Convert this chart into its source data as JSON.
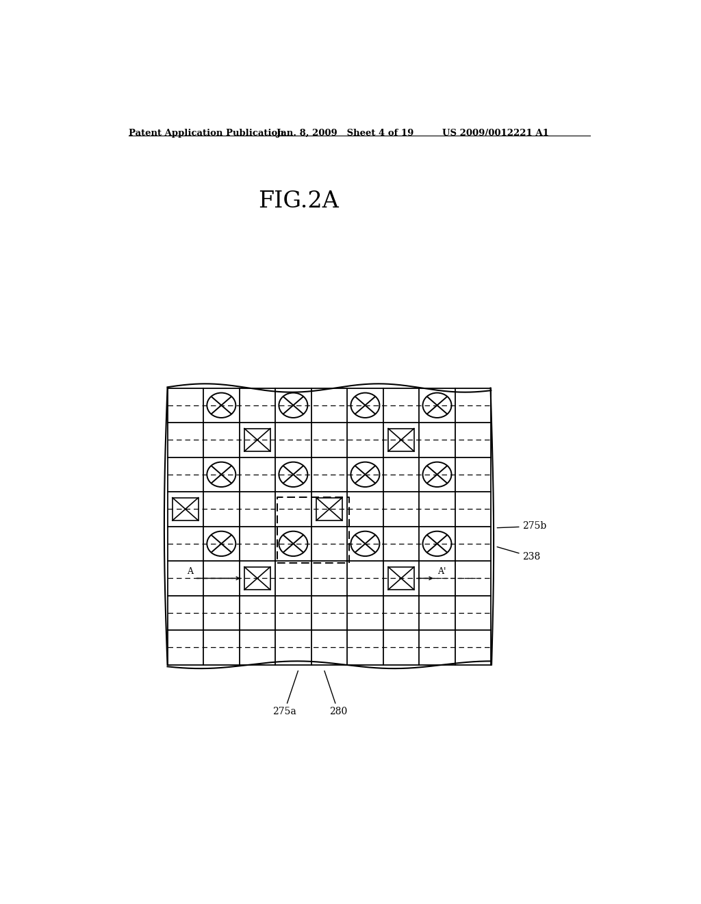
{
  "title": "FIG.2A",
  "header_left": "Patent Application Publication",
  "header_center": "Jan. 8, 2009   Sheet 4 of 19",
  "header_right": "US 2009/0012221 A1",
  "background_color": "#ffffff",
  "label_275b": "275b",
  "label_238": "238",
  "label_275a": "275a",
  "label_280": "280"
}
